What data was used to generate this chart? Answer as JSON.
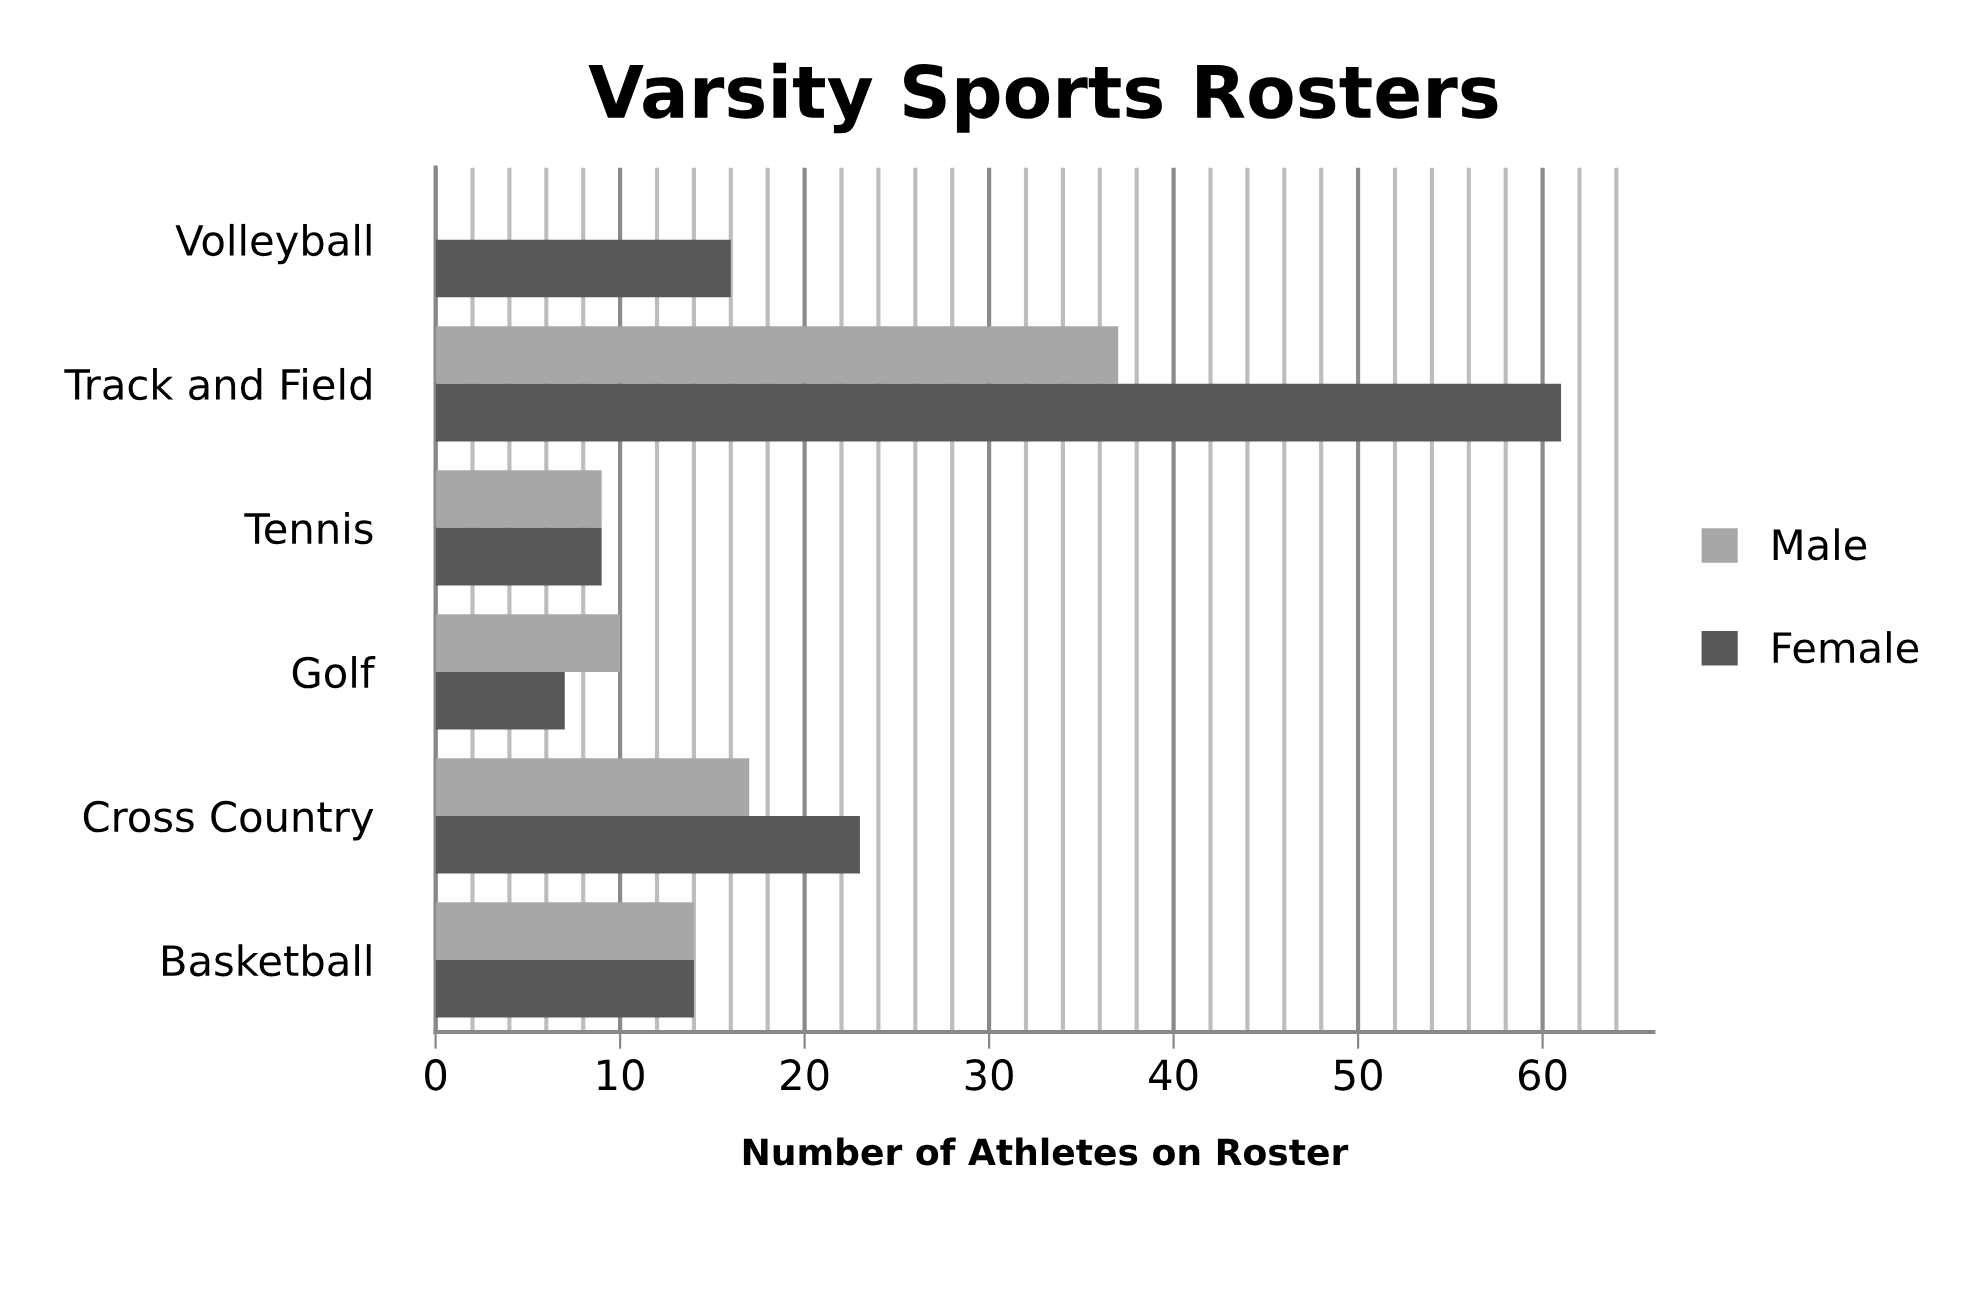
{
  "chart_data": {
    "type": "bar",
    "orientation": "horizontal",
    "title": "Varsity Sports Rosters",
    "xlabel": "Number of Athletes on Roster",
    "categories": [
      "Volleyball",
      "Track and Field",
      "Tennis",
      "Golf",
      "Cross Country",
      "Basketball"
    ],
    "series": [
      {
        "name": "Male",
        "color": "#a6a7a9",
        "values": [
          null,
          37,
          9,
          10,
          17,
          14
        ]
      },
      {
        "name": "Female",
        "color": "#58585a",
        "values": [
          16,
          61,
          9,
          7,
          23,
          14
        ]
      }
    ],
    "xlim": [
      0,
      66
    ],
    "xticks": [
      0,
      {
        "value": 2,
        "label": null
      },
      {
        "value": 4,
        "label": null
      },
      {
        "value": 6,
        "label": null
      },
      {
        "value": 8,
        "label": null
      },
      10,
      {
        "value": 12,
        "label": null
      },
      {
        "value": 14,
        "label": null
      },
      {
        "value": 16,
        "label": null
      },
      {
        "value": 18,
        "label": null
      },
      20,
      {
        "value": 22,
        "label": null
      },
      {
        "value": 24,
        "label": null
      },
      {
        "value": 26,
        "label": null
      },
      {
        "value": 28,
        "label": null
      },
      30,
      {
        "value": 32,
        "label": null
      },
      {
        "value": 34,
        "label": null
      },
      {
        "value": 36,
        "label": null
      },
      {
        "value": 38,
        "label": null
      },
      40,
      {
        "value": 42,
        "label": null
      },
      {
        "value": 44,
        "label": null
      },
      {
        "value": 46,
        "label": null
      },
      {
        "value": 48,
        "label": null
      },
      50,
      {
        "value": 52,
        "label": null
      },
      {
        "value": 54,
        "label": null
      },
      {
        "value": 56,
        "label": null
      },
      {
        "value": 58,
        "label": null
      },
      60,
      {
        "value": 62,
        "label": null
      },
      {
        "value": 64,
        "label": null
      }
    ],
    "grid": "x",
    "legend": "right"
  }
}
